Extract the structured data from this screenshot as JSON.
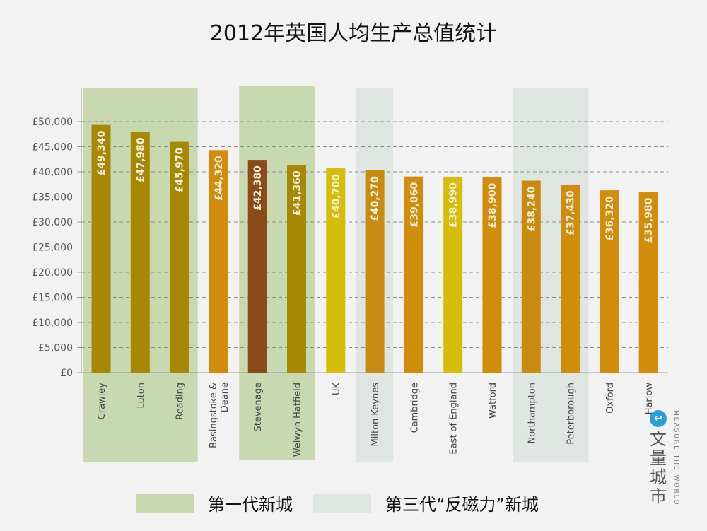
{
  "title": "2012年英国人均生产总值统计",
  "chart_data": {
    "type": "bar",
    "title": "2012年英国人均生产总值统计",
    "categories": [
      "Crawley",
      "Luton",
      "Reading",
      "Basingstoke & Deane",
      "Stevenage",
      "Welwyn Hatfield",
      "UK",
      "Milton Keynes",
      "Cambridge",
      "East of England",
      "Watford",
      "Northampton",
      "Peterborough",
      "Oxford",
      "Harlow"
    ],
    "values": [
      49340,
      47980,
      45970,
      44320,
      42380,
      41360,
      40700,
      40270,
      39060,
      38990,
      38900,
      38240,
      37430,
      36320,
      35980
    ],
    "value_labels": [
      "£49,340",
      "£47,980",
      "£45,970",
      "£44,320",
      "£42,380",
      "£41,360",
      "£40,700",
      "£40,270",
      "£39,060",
      "£38,990",
      "£38,900",
      "£38,240",
      "£37,430",
      "£36,320",
      "£35,980"
    ],
    "bar_colors": [
      "#a88705",
      "#a88705",
      "#a88705",
      "#d18c0b",
      "#8b4a18",
      "#a88705",
      "#d6bd0a",
      "#c98a0f",
      "#d18c0b",
      "#d6bd0a",
      "#d18c0b",
      "#c98a0f",
      "#d18c0b",
      "#d18c0b",
      "#d18c0b"
    ],
    "y_ticks": [
      "£0",
      "£5,000",
      "£10,000",
      "£15,000",
      "£20,000",
      "£25,000",
      "£30,000",
      "£35,000",
      "£40,000",
      "£45,000",
      "£50,000"
    ],
    "ylim": [
      0,
      50000
    ],
    "grid": true,
    "highlight_groups": [
      {
        "label": "第一代新城",
        "color": "#c8d8b0",
        "categories": [
          "Crawley",
          "Luton",
          "Reading"
        ]
      },
      {
        "label": "第一代新城",
        "color": "#c8d8b0",
        "categories": [
          "Stevenage",
          "Welwyn Hatfield"
        ]
      },
      {
        "label": "第三代“反磁力”新城",
        "color": "#dfe6e2",
        "categories": [
          "Milton Keynes"
        ]
      },
      {
        "label": "第三代“反磁力”新城",
        "color": "#dfe6e2",
        "categories": [
          "Northampton",
          "Peterborough"
        ]
      }
    ],
    "legend_position": "bottom"
  },
  "legend": [
    {
      "label": "第一代新城",
      "color": "#c8d8b0"
    },
    {
      "label": "第三代“反磁力”新城",
      "color": "#dfe6e2"
    }
  ],
  "brand": {
    "cn": "文量城市",
    "en": "MEASURE THE WORLD",
    "logo": "↩"
  }
}
